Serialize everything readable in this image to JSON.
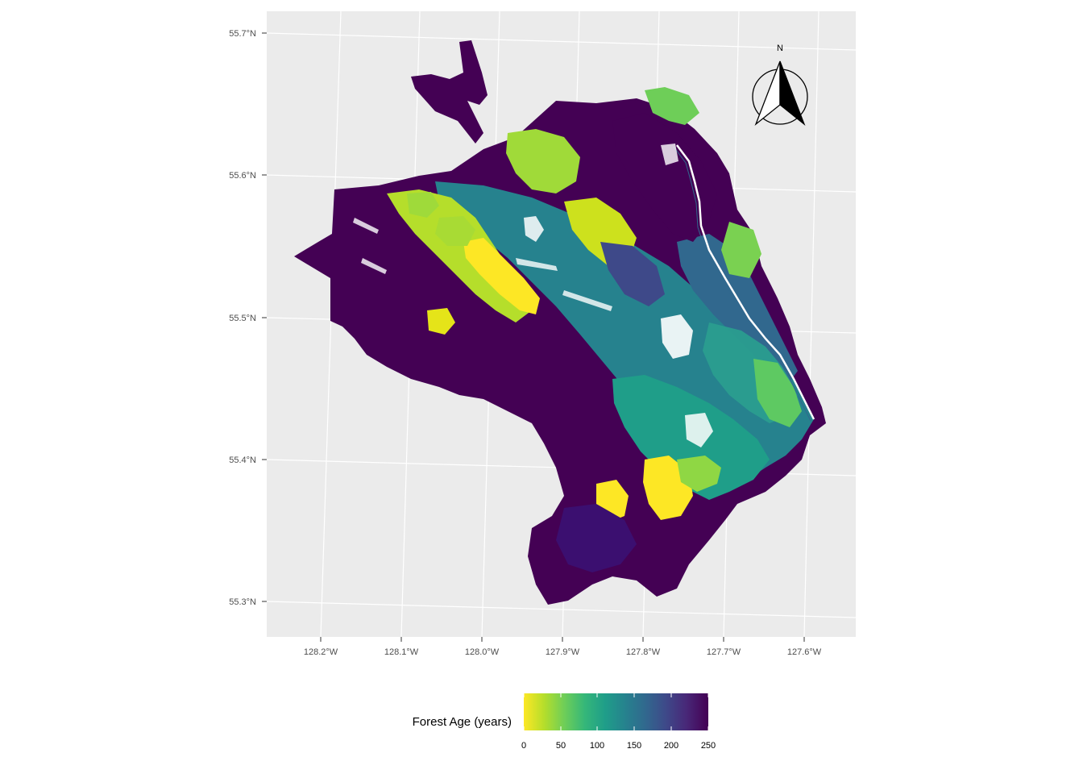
{
  "map": {
    "x_ticks": [
      "128.2°W",
      "128.1°W",
      "128.0°W",
      "127.9°W",
      "127.8°W",
      "127.7°W",
      "127.6°W"
    ],
    "y_ticks": [
      "55.7°N",
      "55.6°N",
      "55.5°N",
      "55.4°N",
      "55.3°N"
    ],
    "panel_background": "#ebebeb",
    "grid_color": "#ffffff"
  },
  "legend": {
    "title": "Forest Age (years)",
    "ticks": [
      "0",
      "50",
      "100",
      "150",
      "200",
      "250"
    ],
    "range": [
      0,
      250
    ],
    "colormap": "viridis (reversed)",
    "colors": [
      "#fde725",
      "#b5de2b",
      "#6ece58",
      "#35b779",
      "#1f9e89",
      "#26828e",
      "#31688e",
      "#3e4989",
      "#482878",
      "#440154"
    ]
  },
  "north_arrow": {
    "label": "N",
    "icon": "north-arrow-icon"
  }
}
